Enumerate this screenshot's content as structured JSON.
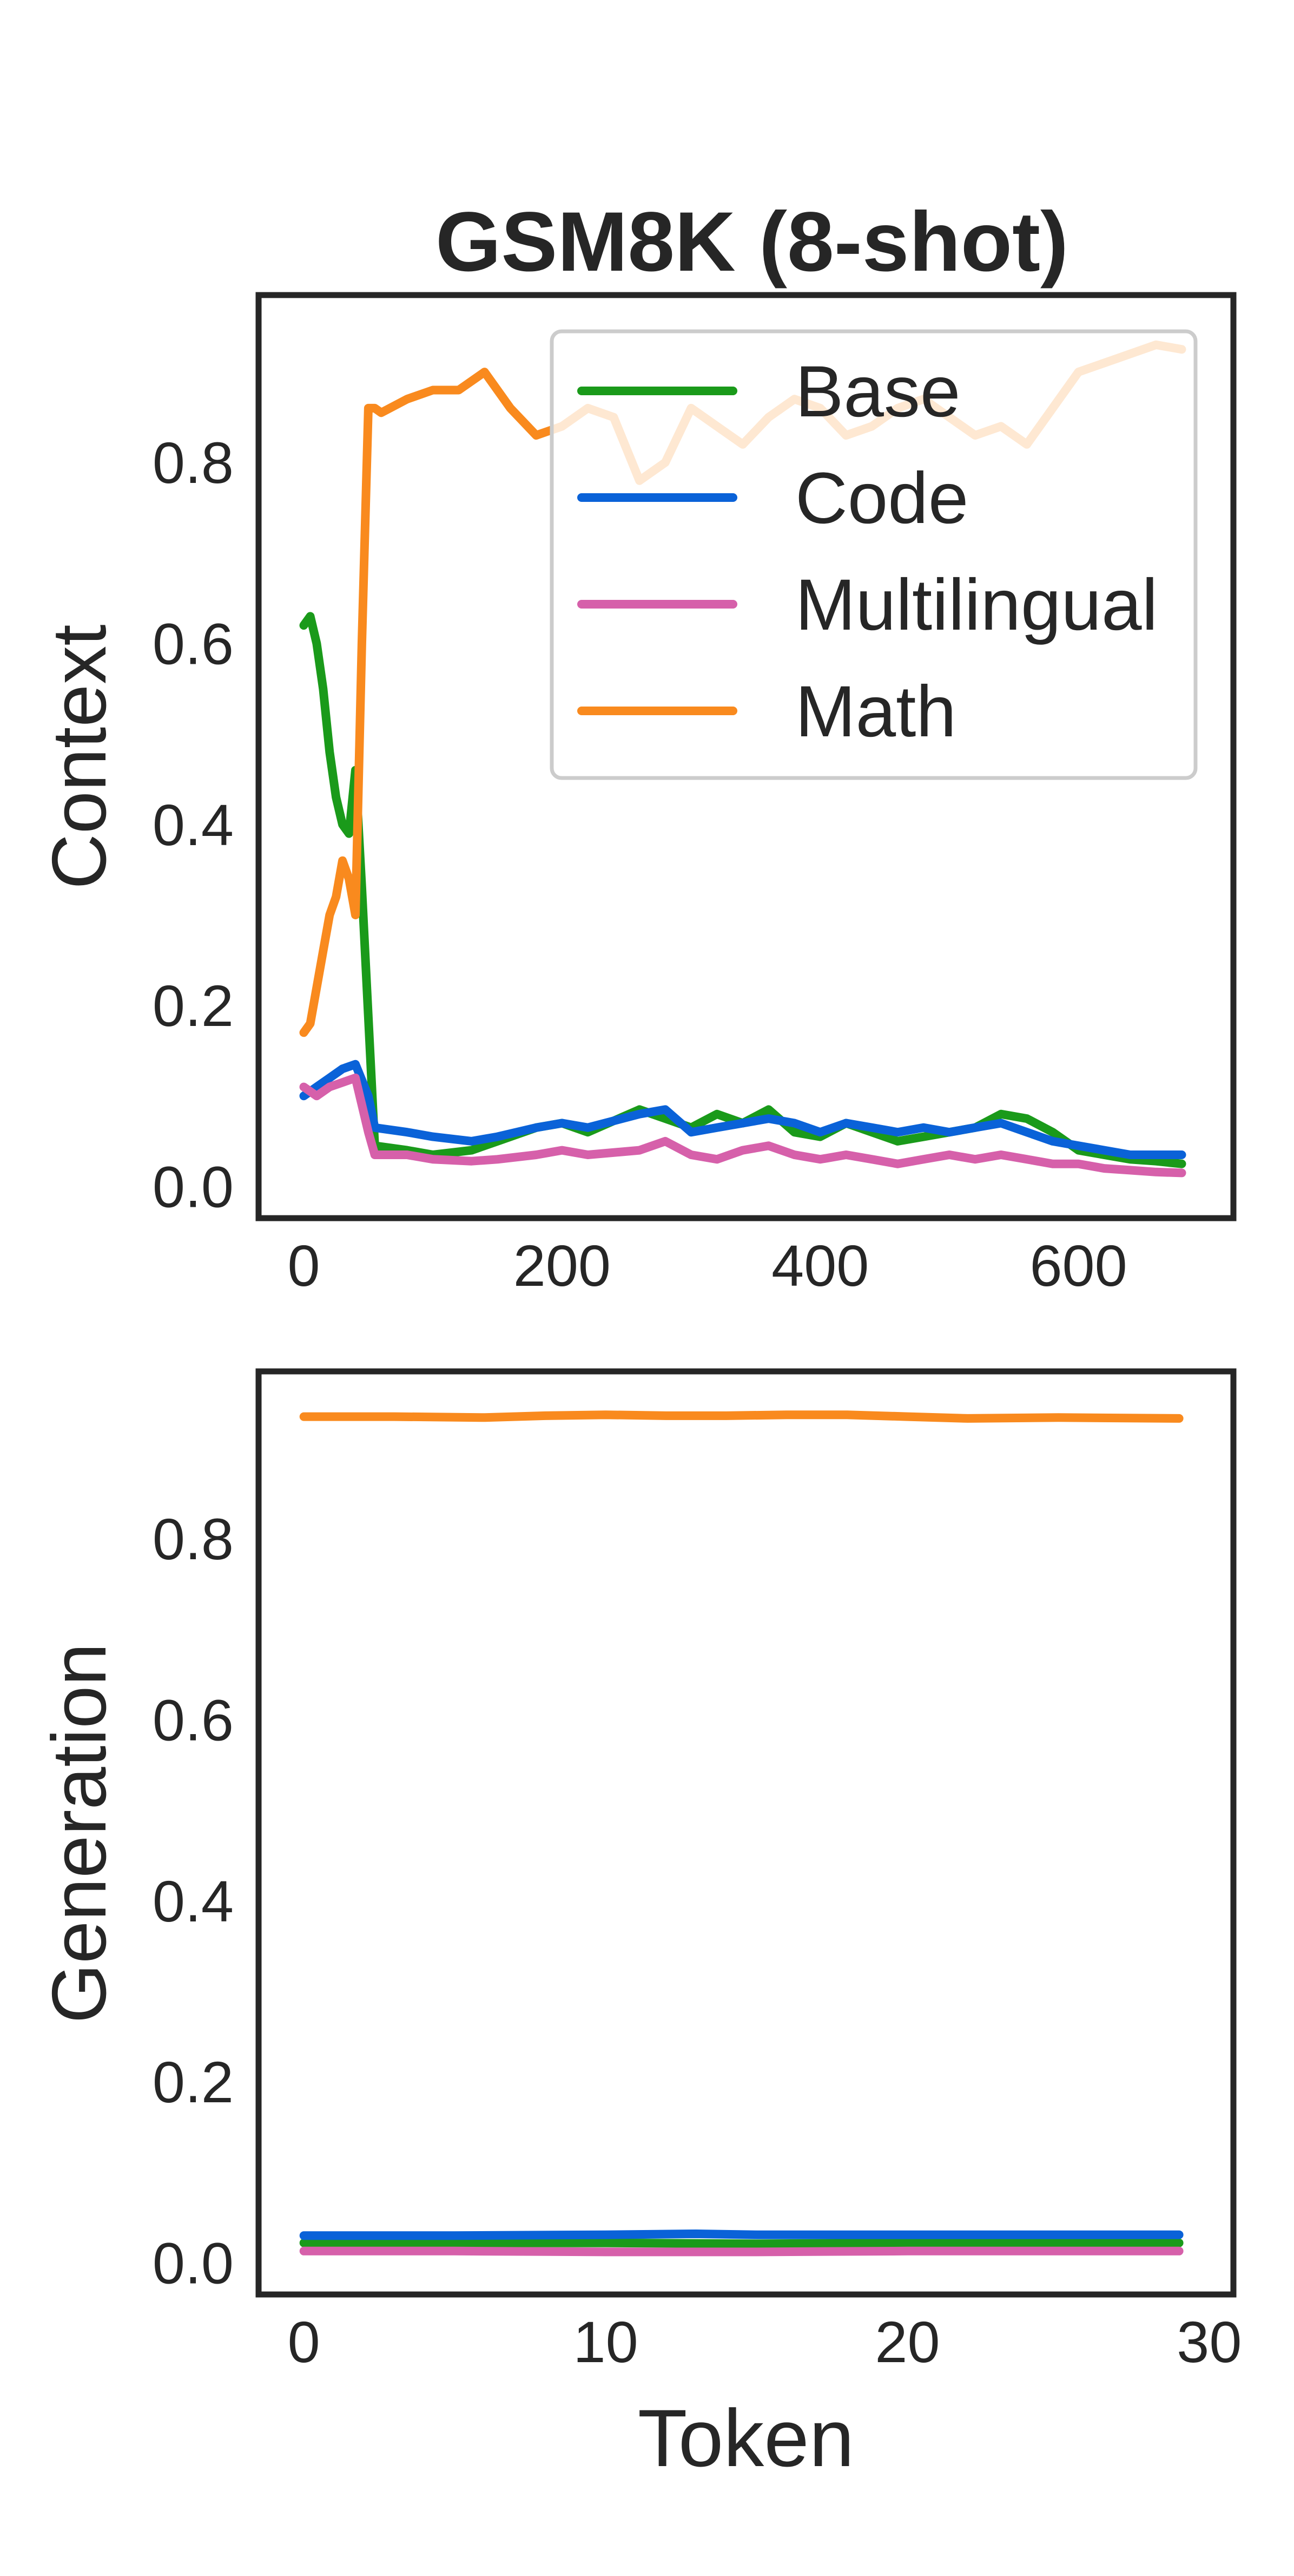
{
  "figure": {
    "title": "GSM8K (8-shot)"
  },
  "legend": {
    "placement": "upper right (top panel)",
    "entries": [
      {
        "label": "Base",
        "color": "#1a9a1a"
      },
      {
        "label": "Code",
        "color": "#0a62d8"
      },
      {
        "label": "Multilingual",
        "color": "#d660aa"
      },
      {
        "label": "Math",
        "color": "#f98a1e"
      }
    ]
  },
  "chart_data": [
    {
      "type": "line",
      "panel": "top",
      "title": "GSM8K (8-shot)",
      "xlabel": "",
      "ylabel": "Context",
      "xlim": [
        -35,
        720
      ],
      "ylim": [
        -0.035,
        0.985
      ],
      "xticks": [
        0,
        200,
        400,
        600
      ],
      "xtick_labels": [
        "0",
        "200",
        "400",
        "600"
      ],
      "yticks": [
        0.0,
        0.2,
        0.4,
        0.6,
        0.8
      ],
      "ytick_labels": [
        "0.0",
        "0.2",
        "0.4",
        "0.6",
        "0.8"
      ],
      "grid": false,
      "series": [
        {
          "name": "Base",
          "color": "#1a9a1a",
          "x": [
            0,
            5,
            10,
            15,
            20,
            25,
            30,
            35,
            40,
            45,
            55,
            80,
            100,
            130,
            150,
            180,
            200,
            220,
            260,
            280,
            300,
            320,
            340,
            360,
            380,
            400,
            420,
            440,
            460,
            480,
            500,
            520,
            540,
            560,
            580,
            600,
            620,
            640,
            660,
            680
          ],
          "y": [
            0.62,
            0.63,
            0.6,
            0.55,
            0.48,
            0.43,
            0.4,
            0.39,
            0.46,
            0.33,
            0.045,
            0.04,
            0.035,
            0.04,
            0.05,
            0.065,
            0.07,
            0.06,
            0.085,
            0.075,
            0.065,
            0.08,
            0.07,
            0.085,
            0.06,
            0.055,
            0.07,
            0.06,
            0.05,
            0.055,
            0.06,
            0.065,
            0.08,
            0.075,
            0.06,
            0.04,
            0.035,
            0.03,
            0.028,
            0.025
          ]
        },
        {
          "name": "Code",
          "color": "#0a62d8",
          "x": [
            0,
            10,
            20,
            30,
            40,
            50,
            55,
            80,
            100,
            130,
            150,
            180,
            200,
            220,
            260,
            280,
            300,
            320,
            340,
            360,
            380,
            400,
            420,
            440,
            460,
            480,
            500,
            520,
            540,
            560,
            580,
            600,
            620,
            640,
            660,
            680
          ],
          "y": [
            0.1,
            0.11,
            0.12,
            0.13,
            0.135,
            0.1,
            0.065,
            0.06,
            0.055,
            0.05,
            0.055,
            0.065,
            0.07,
            0.065,
            0.08,
            0.085,
            0.06,
            0.065,
            0.07,
            0.075,
            0.07,
            0.06,
            0.07,
            0.065,
            0.06,
            0.065,
            0.06,
            0.065,
            0.07,
            0.06,
            0.05,
            0.045,
            0.04,
            0.035,
            0.035,
            0.035
          ]
        },
        {
          "name": "Multilingual",
          "color": "#d660aa",
          "x": [
            0,
            10,
            20,
            30,
            40,
            50,
            55,
            80,
            100,
            130,
            150,
            180,
            200,
            220,
            260,
            280,
            300,
            320,
            340,
            360,
            380,
            400,
            420,
            440,
            460,
            480,
            500,
            520,
            540,
            560,
            580,
            600,
            620,
            640,
            660,
            680
          ],
          "y": [
            0.11,
            0.1,
            0.11,
            0.115,
            0.12,
            0.06,
            0.035,
            0.035,
            0.03,
            0.028,
            0.03,
            0.035,
            0.04,
            0.035,
            0.04,
            0.05,
            0.035,
            0.03,
            0.04,
            0.045,
            0.035,
            0.03,
            0.035,
            0.03,
            0.025,
            0.03,
            0.035,
            0.03,
            0.035,
            0.03,
            0.025,
            0.025,
            0.02,
            0.018,
            0.016,
            0.015
          ]
        },
        {
          "name": "Math",
          "color": "#f98a1e",
          "x": [
            0,
            5,
            10,
            15,
            20,
            25,
            30,
            35,
            40,
            45,
            50,
            55,
            60,
            80,
            100,
            120,
            140,
            160,
            180,
            200,
            220,
            240,
            260,
            280,
            300,
            320,
            340,
            360,
            380,
            400,
            420,
            440,
            460,
            480,
            500,
            520,
            540,
            560,
            580,
            600,
            620,
            640,
            660,
            680
          ],
          "y": [
            0.17,
            0.18,
            0.22,
            0.26,
            0.3,
            0.32,
            0.36,
            0.34,
            0.3,
            0.6,
            0.86,
            0.86,
            0.855,
            0.87,
            0.88,
            0.88,
            0.9,
            0.86,
            0.83,
            0.84,
            0.86,
            0.85,
            0.78,
            0.8,
            0.86,
            0.84,
            0.82,
            0.85,
            0.87,
            0.86,
            0.83,
            0.84,
            0.86,
            0.87,
            0.85,
            0.83,
            0.84,
            0.82,
            0.86,
            0.9,
            0.91,
            0.92,
            0.93,
            0.925
          ]
        }
      ]
    },
    {
      "type": "line",
      "panel": "bottom",
      "title": "",
      "xlabel": "Token",
      "ylabel": "Generation",
      "xlim": [
        -1.5,
        30.8
      ],
      "ylim": [
        -0.035,
        0.985
      ],
      "xticks": [
        0,
        10,
        20,
        30
      ],
      "xtick_labels": [
        "0",
        "10",
        "20",
        "30"
      ],
      "yticks": [
        0.0,
        0.2,
        0.4,
        0.6,
        0.8
      ],
      "ytick_labels": [
        "0.0",
        "0.2",
        "0.4",
        "0.6",
        "0.8"
      ],
      "grid": false,
      "series": [
        {
          "name": "Base",
          "color": "#1a9a1a",
          "x": [
            0,
            5,
            10,
            15,
            20,
            25,
            29
          ],
          "y": [
            0.022,
            0.022,
            0.022,
            0.021,
            0.022,
            0.022,
            0.022
          ]
        },
        {
          "name": "Code",
          "color": "#0a62d8",
          "x": [
            0,
            5,
            10,
            13,
            15,
            20,
            25,
            29
          ],
          "y": [
            0.03,
            0.03,
            0.031,
            0.032,
            0.031,
            0.031,
            0.031,
            0.031
          ]
        },
        {
          "name": "Multilingual",
          "color": "#d660aa",
          "x": [
            0,
            5,
            10,
            15,
            20,
            25,
            29
          ],
          "y": [
            0.013,
            0.013,
            0.012,
            0.012,
            0.013,
            0.013,
            0.013
          ]
        },
        {
          "name": "Math",
          "color": "#f98a1e",
          "x": [
            0,
            3,
            6,
            8,
            10,
            12,
            14,
            16,
            18,
            20,
            22,
            25,
            29
          ],
          "y": [
            0.935,
            0.935,
            0.934,
            0.936,
            0.937,
            0.936,
            0.936,
            0.937,
            0.937,
            0.935,
            0.933,
            0.934,
            0.933
          ]
        }
      ]
    }
  ]
}
